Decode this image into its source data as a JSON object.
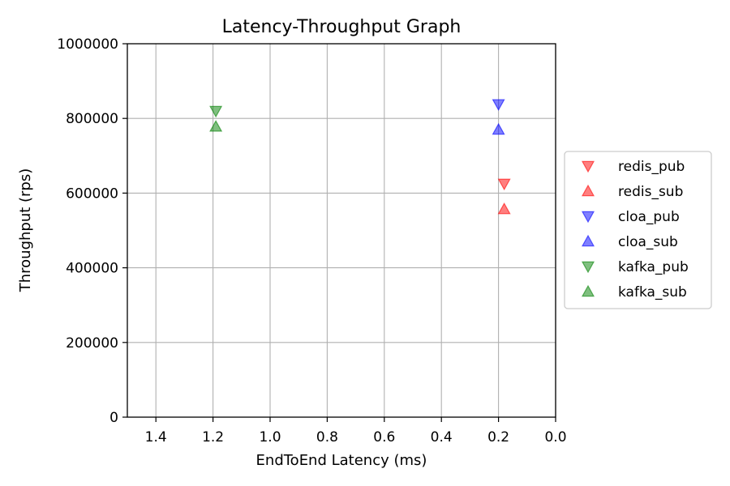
{
  "chart_data": {
    "type": "scatter",
    "title": "Latency-Throughput Graph",
    "xlabel": "EndToEnd Latency (ms)",
    "ylabel": "Throughput (rps)",
    "xlim": [
      1.5,
      0.0
    ],
    "x_inverted": true,
    "ylim": [
      0,
      1000000
    ],
    "x_ticks": [
      1.4,
      1.2,
      1.0,
      0.8,
      0.6,
      0.4,
      0.2,
      0.0
    ],
    "x_tick_labels": [
      "1.4",
      "1.2",
      "1.0",
      "0.8",
      "0.6",
      "0.4",
      "0.2",
      "0.0"
    ],
    "y_ticks": [
      0,
      200000,
      400000,
      600000,
      800000,
      1000000
    ],
    "y_tick_labels": [
      "0",
      "200000",
      "400000",
      "600000",
      "800000",
      "1000000"
    ],
    "grid": true,
    "legend_position": "right, outside plot",
    "series": [
      {
        "name": "redis_pub",
        "color": "#ff0000",
        "marker": "triangle-down",
        "points": [
          {
            "x": 0.18,
            "y": 625000
          }
        ]
      },
      {
        "name": "redis_sub",
        "color": "#ff0000",
        "marker": "triangle-up",
        "points": [
          {
            "x": 0.18,
            "y": 557000
          }
        ]
      },
      {
        "name": "cloa_pub",
        "color": "#0000ff",
        "marker": "triangle-down",
        "points": [
          {
            "x": 0.2,
            "y": 838000
          }
        ]
      },
      {
        "name": "cloa_sub",
        "color": "#0000ff",
        "marker": "triangle-up",
        "points": [
          {
            "x": 0.2,
            "y": 770000
          }
        ]
      },
      {
        "name": "kafka_pub",
        "color": "#008000",
        "marker": "triangle-down",
        "points": [
          {
            "x": 1.19,
            "y": 820000
          }
        ]
      },
      {
        "name": "kafka_sub",
        "color": "#008000",
        "marker": "triangle-up",
        "points": [
          {
            "x": 1.19,
            "y": 778000
          }
        ]
      }
    ]
  }
}
